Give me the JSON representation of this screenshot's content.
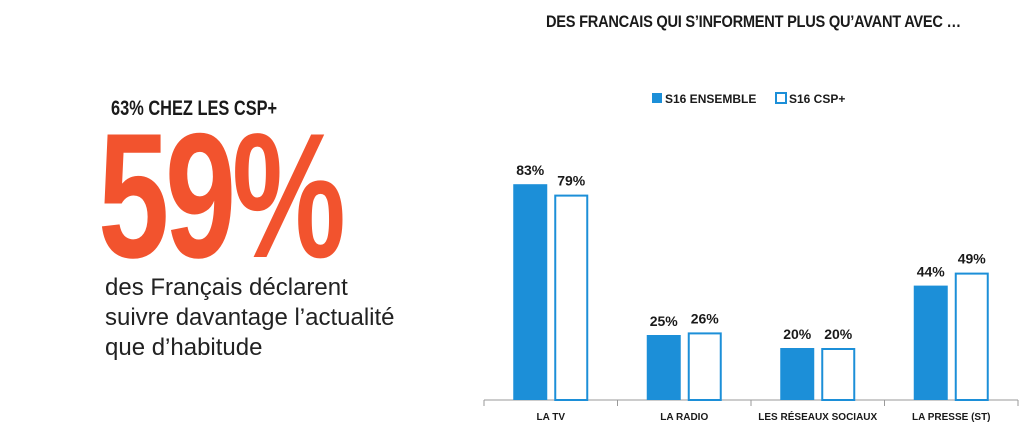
{
  "headline": "DES FRANCAIS  QUI S’INFORMENT PLUS QU’AVANT AVEC …",
  "sub_stat": "63% CHEZ LES CSP+",
  "big_stat": "59%",
  "description_lines": [
    "des Français déclarent",
    "suivre davantage  l’actualité",
    "que d’habitude"
  ],
  "colors": {
    "accent": "#f2532e",
    "series_fill": "#1c8fd8",
    "outline": "#1c8fd8"
  },
  "chart_data": {
    "type": "bar",
    "categories": [
      "LA TV",
      "LA RADIO",
      "LES RÉSEAUX SOCIAUX",
      "LA PRESSE (ST)"
    ],
    "series": [
      {
        "name": "S16 ENSEMBLE",
        "values": [
          83,
          25,
          20,
          44
        ],
        "labels": [
          "83%",
          "25%",
          "20%",
          "44%"
        ],
        "style": "filled"
      },
      {
        "name": "S16 CSP+",
        "values": [
          79,
          26,
          20,
          49
        ],
        "labels": [
          "79%",
          "26%",
          "20%",
          "49%"
        ],
        "style": "outlined"
      }
    ],
    "ylim": [
      0,
      100
    ],
    "legend_position": "top-center",
    "grid": false
  }
}
